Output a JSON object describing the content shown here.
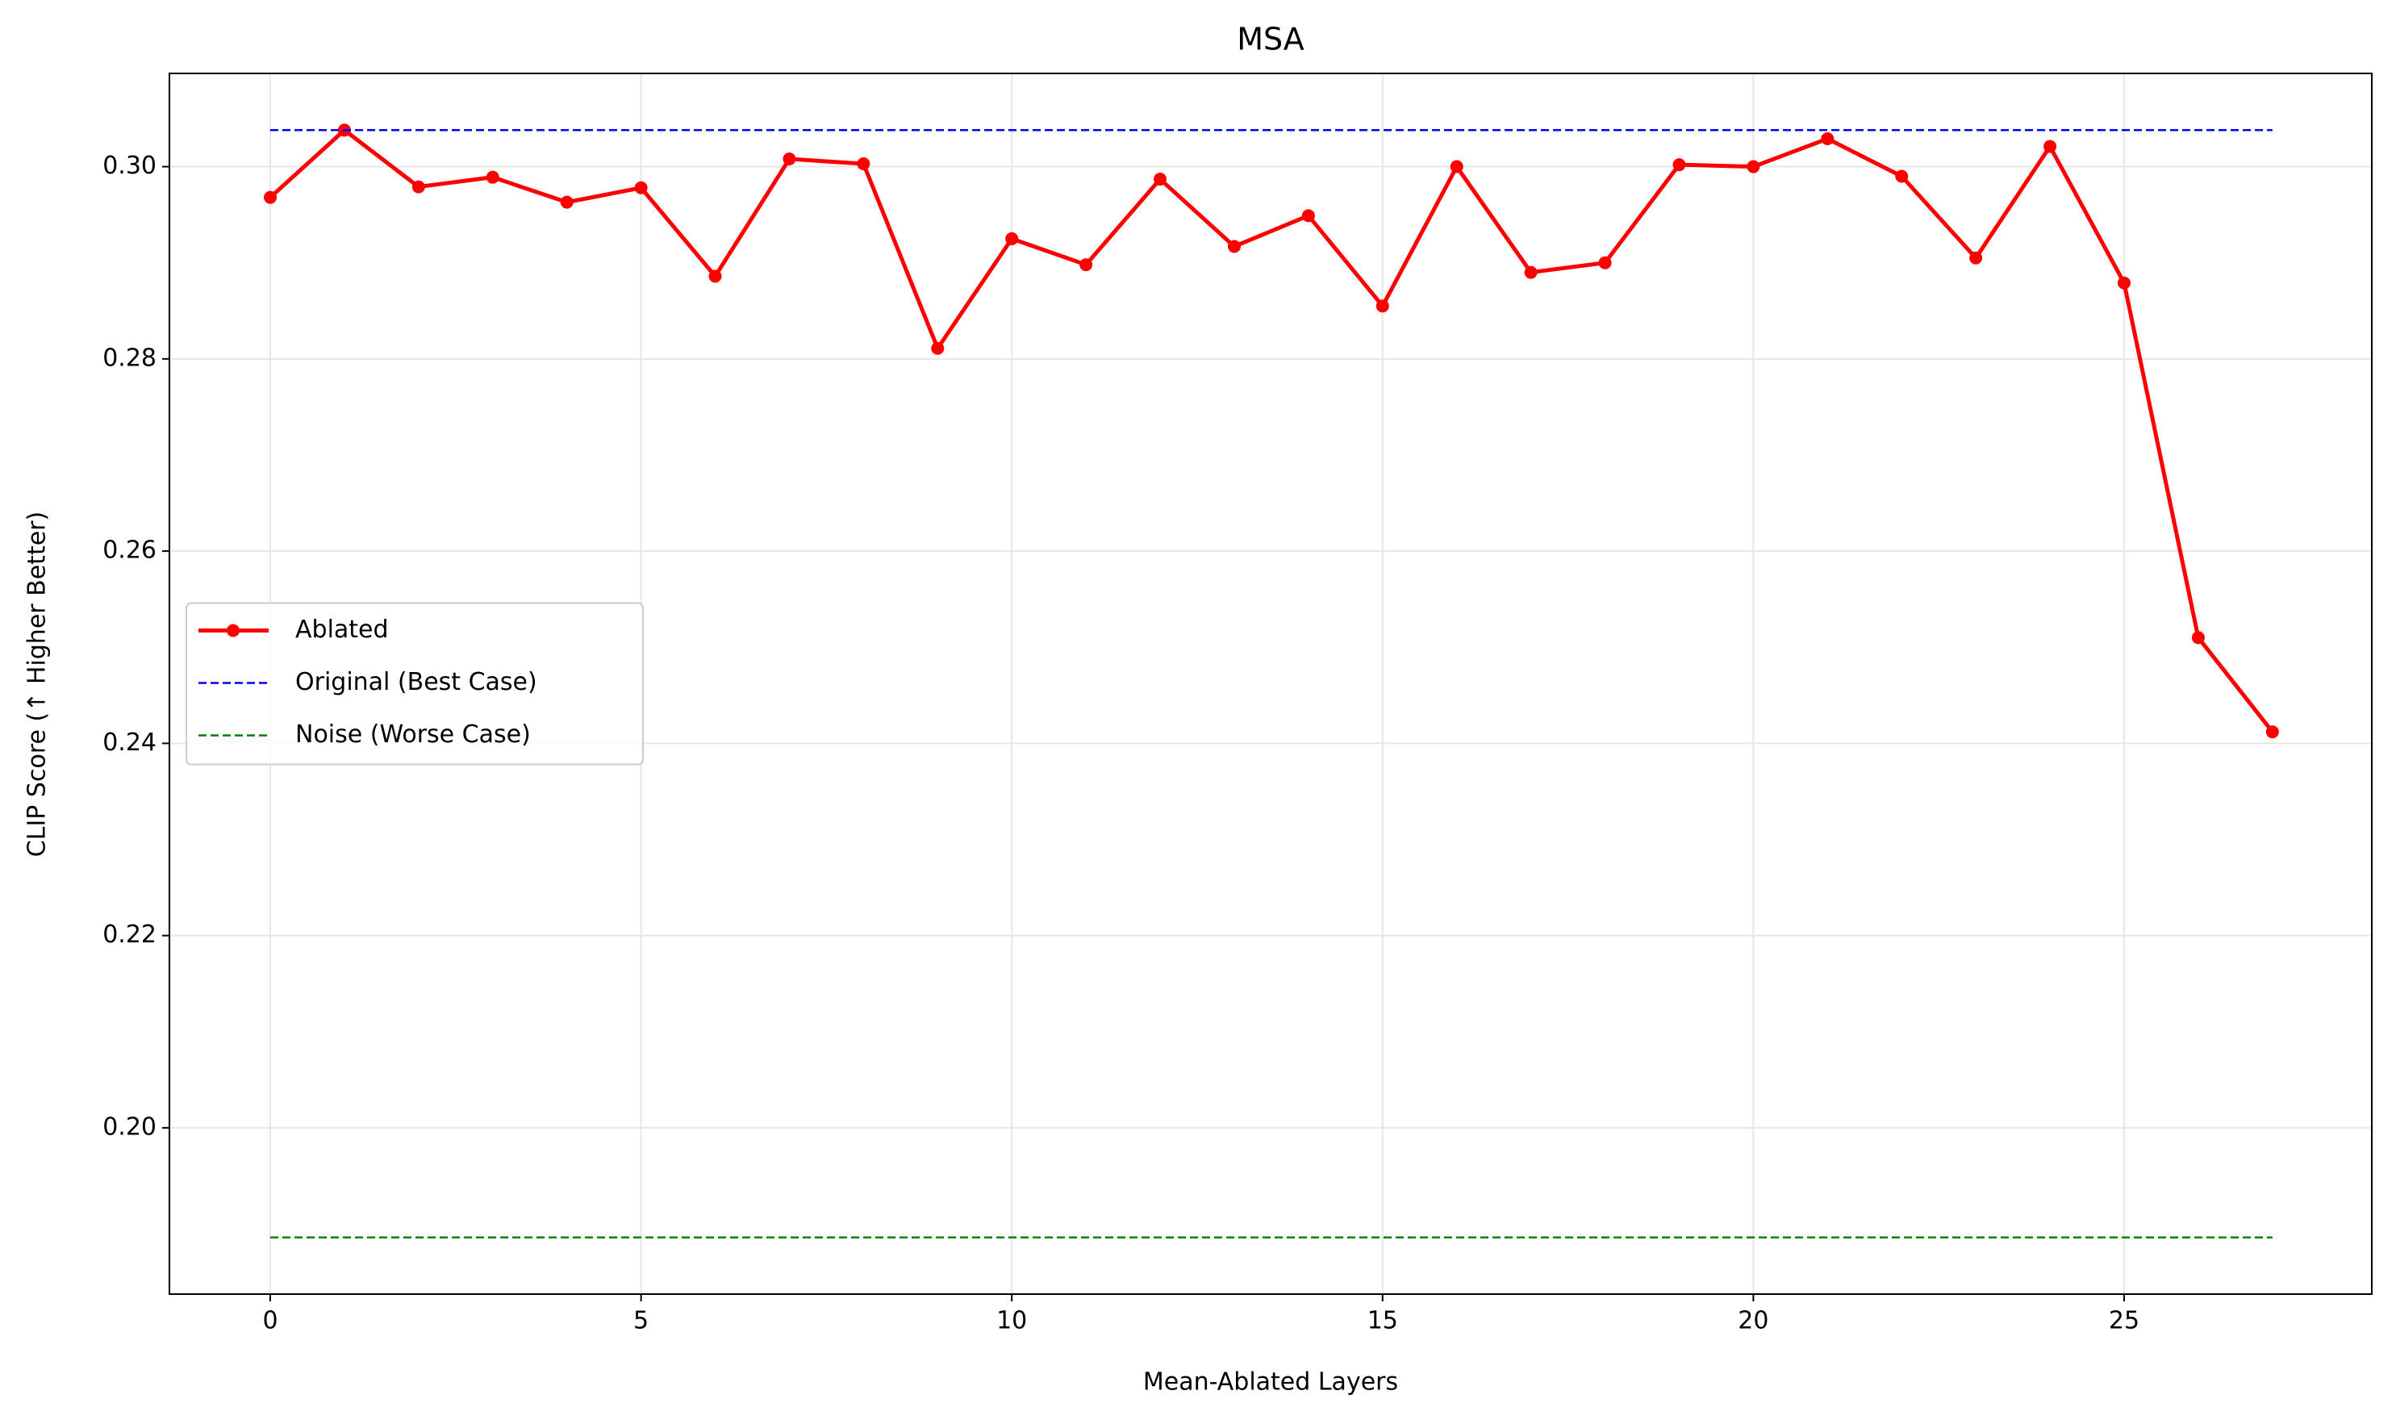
{
  "chart_data": {
    "type": "line",
    "title": "MSA",
    "x_label": "Mean-Ablated Layers",
    "y_label": "CLIP Score (↑ Higher Better)",
    "series": [
      {
        "name": "Ablated",
        "color": "#ff0000",
        "style": "solid",
        "marker": true,
        "x": [
          0,
          1,
          2,
          3,
          4,
          5,
          6,
          7,
          8,
          9,
          10,
          11,
          12,
          13,
          14,
          15,
          16,
          17,
          18,
          19,
          20,
          21,
          22,
          23,
          24,
          25,
          26,
          27
        ],
        "values": [
          0.2968,
          0.3038,
          0.2979,
          0.2989,
          0.2963,
          0.2978,
          0.2886,
          0.3008,
          0.3003,
          0.2811,
          0.2925,
          0.2898,
          0.2987,
          0.2917,
          0.2949,
          0.2855,
          0.3,
          0.289,
          0.29,
          0.3002,
          0.3,
          0.3029,
          0.299,
          0.2905,
          0.3021,
          0.2879,
          0.251,
          0.2412
        ]
      },
      {
        "name": "Original (Best Case)",
        "color": "#0000ff",
        "style": "dashed",
        "marker": false,
        "x": [
          0,
          27
        ],
        "values": [
          0.3038,
          0.3038
        ]
      },
      {
        "name": "Noise (Worse Case)",
        "color": "#008000",
        "style": "dashed",
        "marker": false,
        "x": [
          0,
          27
        ],
        "values": [
          0.1886,
          0.1886
        ]
      }
    ],
    "xlim": [
      -1.36,
      28.34
    ],
    "ylim": [
      0.1827,
      0.3097
    ],
    "xticks": [
      0,
      5,
      10,
      15,
      20,
      25
    ],
    "yticks": [
      {
        "value": 0.2,
        "label": "0.20"
      },
      0.22,
      0.24,
      0.26,
      0.28,
      {
        "value": 0.3,
        "label": "0.30"
      }
    ],
    "grid": true,
    "legend": "center left"
  }
}
